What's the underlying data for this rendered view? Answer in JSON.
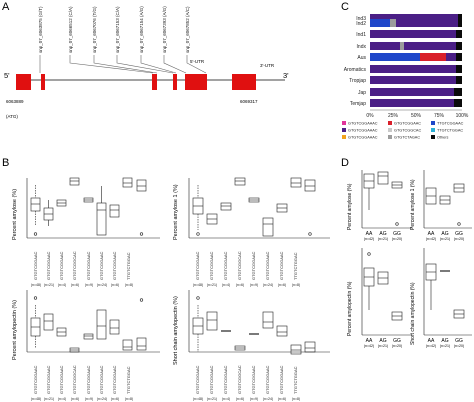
{
  "panels": {
    "a": "A",
    "b": "B",
    "c": "C",
    "d": "D"
  },
  "panel_a": {
    "left_end": "5'",
    "right_end": "3'",
    "start_pos": "6063889",
    "start_gene": "(ATG)",
    "end_pos": "6069317",
    "utr5": "5'-UTR",
    "utr3": "3'-UTR",
    "snp_labels": [
      "snp_07_6063875 (G/T)",
      "snp_07_6066512 (C/A)",
      "snp_07_6067076 (T/G)",
      "snp_07_6067153 (C/A)",
      "snp_07_6067154 (A/G)",
      "snp_07_6067393 (A/G)",
      "snp_07_6067852 (A/C)"
    ]
  },
  "panel_b": {
    "ylabels": [
      "Percent amylose (%)",
      "Percent amylose 1 (%)",
      "Percent amylopectin (%)",
      "Short chain amylopectin (%)"
    ],
    "haplotypes": [
      "GTGTCGGAAC",
      "GTGTCGGAAC",
      "GTGTCGGAAC",
      "GTGTCGGCAC",
      "GTGTCGGAAC",
      "GTGTCGGAAC",
      "GTGTCGGAAC",
      "TTGTCTGGAC"
    ],
    "counts": [
      "(n=48)",
      "(n=21)",
      "(n=4)",
      "(n=6)",
      "(n=9)",
      "(n=24)",
      "(n=6)",
      "(n=8)"
    ]
  },
  "panel_c": {
    "rows": [
      "Ind3",
      "Ind2",
      "Ind1",
      "Indx",
      "Aus",
      "Aromatics",
      "Tropjap",
      "Jap",
      "Temjap"
    ],
    "ticks": [
      "0%",
      "25%",
      "50%",
      "75%",
      "100%"
    ],
    "legend": [
      "GTGTCGGAAAC",
      "GTGTCGGAAAC",
      "GTGTCGGAAAC",
      "GTGTCGGAAC",
      "GTGTCGGCAC",
      "GTGTCTAGAC",
      "TTGTCGGAAC",
      "TTGTCTGGAC",
      "Others"
    ],
    "colors": {
      "indigo": "#4b1f86",
      "blue": "#1f47c9",
      "cyan": "#2bb0d6",
      "orange": "#f2a31c",
      "gray": "#9c9c9c",
      "black": "#0b0b0b",
      "red": "#d9202b",
      "magenta": "#e0339a",
      "lightgray": "#c9c9c9"
    }
  },
  "panel_d": {
    "ylabels": [
      "Percent amylose (%)",
      "Percent amylose 1 (%)",
      "Percent amylopectin (%)",
      "Short chain amylopectin (%)"
    ],
    "groups": [
      "AA",
      "AG",
      "GG"
    ],
    "counts": [
      "(n=42)",
      "(n=21)",
      "(n=20)"
    ]
  }
}
